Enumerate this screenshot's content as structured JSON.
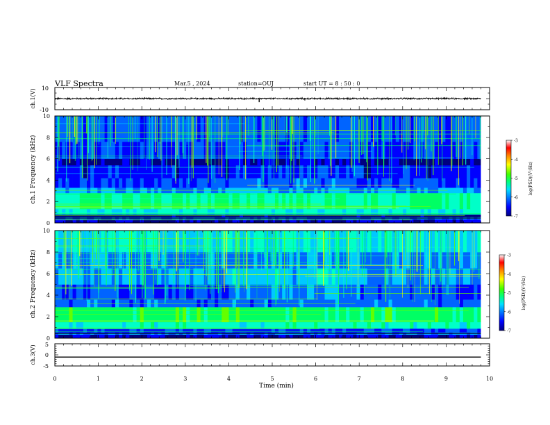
{
  "header": {
    "title": "VLF Spectra",
    "date": "Mar.5 , 2024",
    "station": "station=OUJ",
    "start": "start UT = 8 : 50 : 0"
  },
  "colors": {
    "spectrogram": [
      "#000080",
      "#0000ff",
      "#0064ff",
      "#00c8ff",
      "#00ffc8",
      "#00ff64",
      "#64ff00",
      "#ffff00",
      "#ff9600",
      "#ff0000",
      "#ffffff"
    ],
    "trace": "#000000"
  },
  "chart_data": [
    {
      "type": "line",
      "name": "waveform-ch1",
      "ylabel": "ch.1(V)",
      "ylim": [
        -10,
        10
      ],
      "yticks": [
        "10",
        "-10"
      ],
      "xlim": [
        0,
        10
      ],
      "baseline": 0,
      "noise_amplitude": 0.6,
      "spikes": [
        {
          "x": 4.7,
          "y": -3.2
        },
        {
          "x": 5.75,
          "y": -1.6
        },
        {
          "x": 8.95,
          "y": 1.0
        }
      ]
    },
    {
      "type": "heatmap",
      "name": "spectrogram-ch1",
      "ylabel": "ch.1 Frequency (kHz)",
      "xlim": [
        0,
        10
      ],
      "ylim": [
        0,
        10
      ],
      "yticks": [
        "0",
        "2",
        "4",
        "6",
        "8",
        "10"
      ],
      "data_extent_min": 9.8,
      "colorbar": {
        "label": "log(PSD)(V²/Hz)",
        "range": [
          -7,
          -3
        ],
        "ticks": [
          "-3",
          "-4",
          "-5",
          "-6",
          "-7"
        ]
      }
    },
    {
      "type": "heatmap",
      "name": "spectrogram-ch2",
      "ylabel": "ch.2 Frequency (kHz)",
      "xlim": [
        0,
        10
      ],
      "ylim": [
        0,
        10
      ],
      "yticks": [
        "0",
        "2",
        "4",
        "6",
        "8",
        "10"
      ],
      "data_extent_min": 9.8,
      "colorbar": {
        "label": "log(PSD)(V²/Hz)",
        "range": [
          -7,
          -3
        ],
        "ticks": [
          "-3",
          "-4",
          "-5",
          "-6",
          "-7"
        ]
      }
    },
    {
      "type": "line",
      "name": "waveform-ch3",
      "ylabel": "ch.3(V)",
      "ylim": [
        -5,
        5
      ],
      "yticks": [
        "5",
        "0",
        "-5"
      ],
      "xlim": [
        0,
        10
      ],
      "baseline": -1.0,
      "noise_amplitude": 0
    }
  ],
  "xaxis": {
    "label": "Time (min)",
    "ticks": [
      "0",
      "1",
      "2",
      "3",
      "4",
      "5",
      "6",
      "7",
      "8",
      "9",
      "10"
    ]
  }
}
